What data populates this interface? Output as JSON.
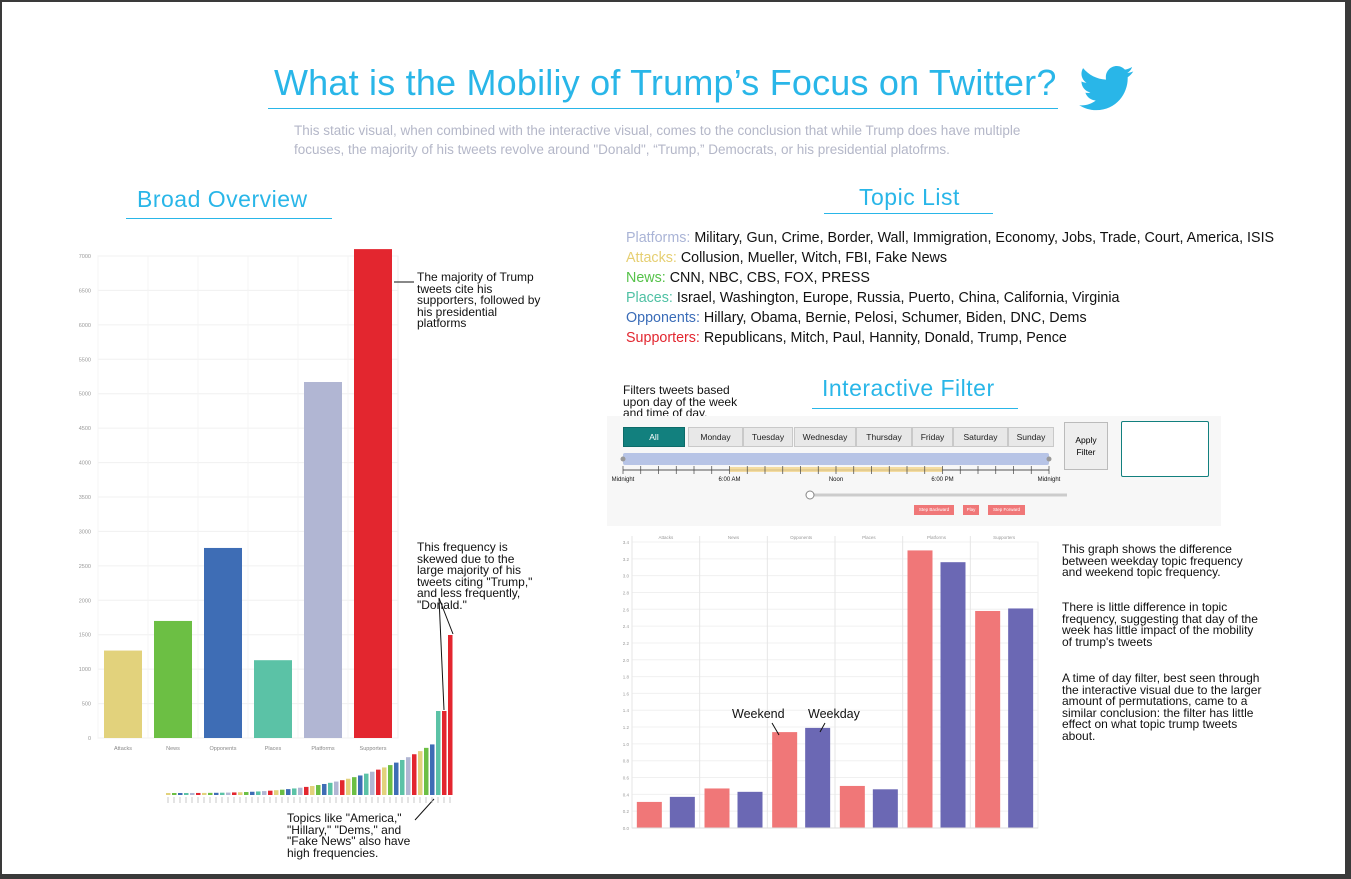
{
  "title": "What is the Mobiliy of Trump’s Focus on Twitter?",
  "subtitle": "This static visual, when combined with the interactive visual, comes to the conclusion that while Trump does have multiple focuses, the majority of his tweets revolve around \"Donald\", “Trump,” Democrats, or his presidential platofrms.",
  "icon": "twitter-bird-icon",
  "sections": {
    "overview": "Broad Overview",
    "topics": "Topic List",
    "filter": "Interactive Filter"
  },
  "topics": [
    {
      "label": "Platforms:",
      "items": "Military, Gun, Crime, Border, Wall, Immigration, Economy, Jobs, Trade, Court, America, ISIS",
      "color": "#aab4d6"
    },
    {
      "label": "Attacks:",
      "items": "Collusion, Mueller, Witch, FBI, Fake News",
      "color": "#e6cf72"
    },
    {
      "label": "News:",
      "items": "CNN, NBC, CBS, FOX, PRESS",
      "color": "#56c24a"
    },
    {
      "label": "Places:",
      "items": "Israel, Washington, Europe, Russia, Puerto, China, California, Virginia",
      "color": "#4fc1a4"
    },
    {
      "label": "Opponents:",
      "items": "Hillary, Obama, Bernie, Pelosi, Schumer, Biden, DNC, Dems",
      "color": "#3a6cb8"
    },
    {
      "label": "Supporters:",
      "items": "Republicans, Mitch, Paul, Hannity, Donald, Trump, Pence",
      "color": "#e2262f"
    }
  ],
  "annotations": {
    "majority": "The majority of Trump tweets cite his supporters, followed by his presidential platforms",
    "skewed": "This frequency is skewed due to the large majority of his tweets citing \"Trump,\" and less frequently, \"Donald.\"",
    "topics_like": "Topics like \"America,\" \"Hillary,\" \"Dems,\" and \"Fake News\" also have high frequencies.",
    "filter_desc": "Filters tweets based upon day of the week and time of day.",
    "graph_shows": "This graph shows the difference between weekday topic frequency and weekend topic frequency.",
    "little_diff": "There is little difference in topic frequency, suggesting that day of the week has little impact of the mobility of trump's tweets",
    "time_of_day": "A time of day filter, best seen through the interactive visual due to the larger amount of permutations, came to a similar conclusion: the filter has little effect on what topic trump tweets about.",
    "weekend": "Weekend",
    "weekday": "Weekday"
  },
  "filter": {
    "days": [
      "All",
      "Monday",
      "Tuesday",
      "Wednesday",
      "Thursday",
      "Friday",
      "Saturday",
      "Sunday"
    ],
    "selected_day": "All",
    "apply_label": "Apply Filter",
    "time_labels": [
      "Midnight",
      "6:00 AM",
      "Noon",
      "6:00 PM",
      "Midnight"
    ],
    "playback": [
      "Step Backward",
      "Play",
      "Step Forward"
    ],
    "accent": "#12807e"
  },
  "chart_data": [
    {
      "type": "bar",
      "categories": [
        "Attacks",
        "News",
        "Opponents",
        "Places",
        "Platforms",
        "Supporters"
      ],
      "values": [
        1270,
        1700,
        2760,
        1130,
        5170,
        7100
      ],
      "colors": [
        "#e2d27c",
        "#6cbf44",
        "#3e6db5",
        "#5bc2a6",
        "#b1b6d3",
        "#e3262f"
      ],
      "ylim": [
        0,
        7000
      ],
      "yticks": [
        0,
        500,
        1000,
        1500,
        2000,
        2500,
        3000,
        3500,
        4000,
        4500,
        5000,
        5500,
        6000,
        6500,
        7000
      ],
      "grid": true
    },
    {
      "type": "bar",
      "categories": [
        "Attacks",
        "News",
        "Opponents",
        "Places",
        "Platforms",
        "Supporters"
      ],
      "series": [
        {
          "name": "Weekend",
          "values": [
            0.31,
            0.47,
            1.14,
            0.5,
            3.3,
            2.58
          ],
          "color": "#f07778"
        },
        {
          "name": "Weekday",
          "values": [
            0.37,
            0.43,
            1.19,
            0.46,
            3.16,
            2.61
          ],
          "color": "#6b68b4"
        }
      ],
      "ylim": [
        0,
        3.4
      ],
      "yticks": [
        0.0,
        0.2,
        0.4,
        0.6,
        0.8,
        1.0,
        1.2,
        1.4,
        1.6,
        1.8,
        2.0,
        2.2,
        2.4,
        2.6,
        2.8,
        3.0,
        3.2,
        3.4
      ],
      "grid": true,
      "facet_headers": true
    }
  ]
}
